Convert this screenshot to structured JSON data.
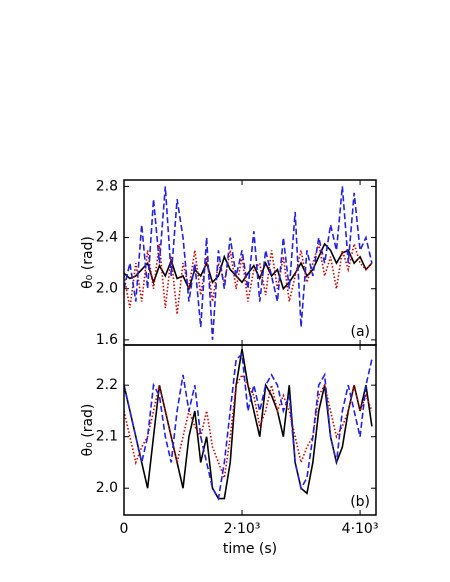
{
  "chart_data": [
    {
      "type": "line",
      "ylabel": "θ₀ (rad)",
      "annotation": "(a)",
      "x": [
        0,
        100,
        200,
        300,
        400,
        500,
        600,
        700,
        800,
        900,
        1000,
        1100,
        1200,
        1300,
        1400,
        1500,
        1600,
        1700,
        1800,
        1900,
        2000,
        2100,
        2200,
        2300,
        2400,
        2500,
        2600,
        2700,
        2800,
        2900,
        3000,
        3100,
        3200,
        3300,
        3400,
        3500,
        3600,
        3700,
        3800,
        3900,
        4000,
        4100,
        4200
      ],
      "series": [
        {
          "color": "#000000",
          "line_style": "solid",
          "values": [
            2.12,
            2.08,
            2.1,
            2.15,
            2.2,
            2.05,
            2.18,
            2.1,
            2.22,
            2.08,
            2.1,
            2.0,
            2.15,
            2.1,
            2.2,
            2.05,
            2.1,
            2.25,
            2.15,
            2.1,
            2.05,
            2.12,
            2.18,
            2.08,
            2.2,
            2.1,
            2.15,
            2.0,
            2.05,
            2.12,
            2.2,
            2.1,
            2.15,
            2.25,
            2.35,
            2.3,
            2.2,
            2.28,
            2.3,
            2.2,
            2.25,
            2.15,
            2.2
          ]
        },
        {
          "color": "#cc0000",
          "line_style": "dotted",
          "values": [
            2.1,
            1.85,
            2.2,
            1.9,
            2.3,
            2.0,
            2.35,
            1.85,
            2.25,
            1.8,
            2.2,
            2.0,
            2.3,
            1.95,
            2.25,
            1.9,
            2.2,
            2.05,
            2.3,
            2.0,
            2.25,
            1.9,
            2.15,
            2.2,
            1.95,
            2.3,
            2.0,
            2.25,
            1.9,
            2.1,
            2.3,
            2.05,
            2.2,
            2.35,
            2.1,
            2.25,
            2.0,
            2.3,
            2.15,
            2.35,
            2.2,
            2.15,
            2.2
          ]
        },
        {
          "color": "#2222dd",
          "line_style": "dashed",
          "values": [
            2.0,
            2.2,
            1.9,
            2.5,
            2.0,
            2.7,
            2.2,
            2.8,
            2.1,
            2.7,
            2.4,
            1.9,
            2.2,
            1.7,
            2.4,
            1.6,
            2.3,
            2.0,
            2.4,
            2.1,
            2.3,
            2.0,
            2.45,
            1.9,
            2.3,
            2.1,
            1.9,
            2.4,
            2.0,
            2.6,
            1.7,
            2.3,
            2.1,
            2.4,
            2.2,
            2.5,
            2.3,
            2.8,
            2.2,
            2.75,
            2.3,
            2.4,
            2.2
          ]
        }
      ],
      "xlim": [
        0,
        4270
      ],
      "ylim": [
        1.56,
        2.85
      ],
      "yticks": [
        2.8,
        2.4,
        {
          "value": 2,
          "label": "2.0"
        },
        1.6
      ]
    },
    {
      "type": "line",
      "ylabel": "θ₀ (rad)",
      "xlabel": "time (s)",
      "annotation": "(b)",
      "x": [
        0,
        100,
        200,
        300,
        400,
        500,
        600,
        700,
        800,
        900,
        1000,
        1100,
        1200,
        1300,
        1400,
        1500,
        1600,
        1700,
        1800,
        1900,
        2000,
        2100,
        2200,
        2300,
        2400,
        2500,
        2600,
        2700,
        2800,
        2900,
        3000,
        3100,
        3200,
        3300,
        3400,
        3500,
        3600,
        3700,
        3800,
        3900,
        4000,
        4100,
        4200
      ],
      "series": [
        {
          "color": "#000000",
          "line_style": "solid",
          "values": [
            2.2,
            2.15,
            2.1,
            2.05,
            2.0,
            2.1,
            2.2,
            2.15,
            2.1,
            2.05,
            2.0,
            2.1,
            2.15,
            2.05,
            2.1,
            2.0,
            1.98,
            1.98,
            2.05,
            2.2,
            2.27,
            2.2,
            2.15,
            2.1,
            2.2,
            2.18,
            2.15,
            2.1,
            2.2,
            2.05,
            2.0,
            1.99,
            2.05,
            2.15,
            2.2,
            2.1,
            2.05,
            2.08,
            2.15,
            2.2,
            2.15,
            2.2,
            2.12
          ]
        },
        {
          "color": "#cc0000",
          "line_style": "dotted",
          "values": [
            2.15,
            2.1,
            2.05,
            2.08,
            2.1,
            2.15,
            2.2,
            2.15,
            2.1,
            2.05,
            2.1,
            2.15,
            2.12,
            2.1,
            2.15,
            2.08,
            2.05,
            2.02,
            2.1,
            2.2,
            2.22,
            2.2,
            2.18,
            2.12,
            2.15,
            2.2,
            2.15,
            2.18,
            2.15,
            2.1,
            2.05,
            2.08,
            2.1,
            2.18,
            2.2,
            2.15,
            2.1,
            2.12,
            2.15,
            2.2,
            2.15,
            2.18,
            2.15
          ]
        },
        {
          "color": "#2222dd",
          "line_style": "dashed",
          "values": [
            2.2,
            2.15,
            2.1,
            2.05,
            2.1,
            2.2,
            2.18,
            2.1,
            2.05,
            2.15,
            2.22,
            2.15,
            2.2,
            2.1,
            2.05,
            2.0,
            1.98,
            2.05,
            2.15,
            2.25,
            2.26,
            2.15,
            2.2,
            2.15,
            2.2,
            2.22,
            2.2,
            2.15,
            2.18,
            2.05,
            2.0,
            2.02,
            2.1,
            2.2,
            2.22,
            2.1,
            2.05,
            2.15,
            2.2,
            2.15,
            2.1,
            2.2,
            2.25
          ]
        }
      ],
      "xlim": [
        0,
        4270
      ],
      "ylim": [
        1.948,
        2.278
      ],
      "xticks": [
        0,
        {
          "value": 2000,
          "label": "2·10³"
        },
        {
          "value": 4000,
          "label": "4·10³"
        }
      ],
      "yticks": [
        2.2,
        2.1,
        {
          "value": 2,
          "label": "2.0"
        }
      ]
    }
  ]
}
